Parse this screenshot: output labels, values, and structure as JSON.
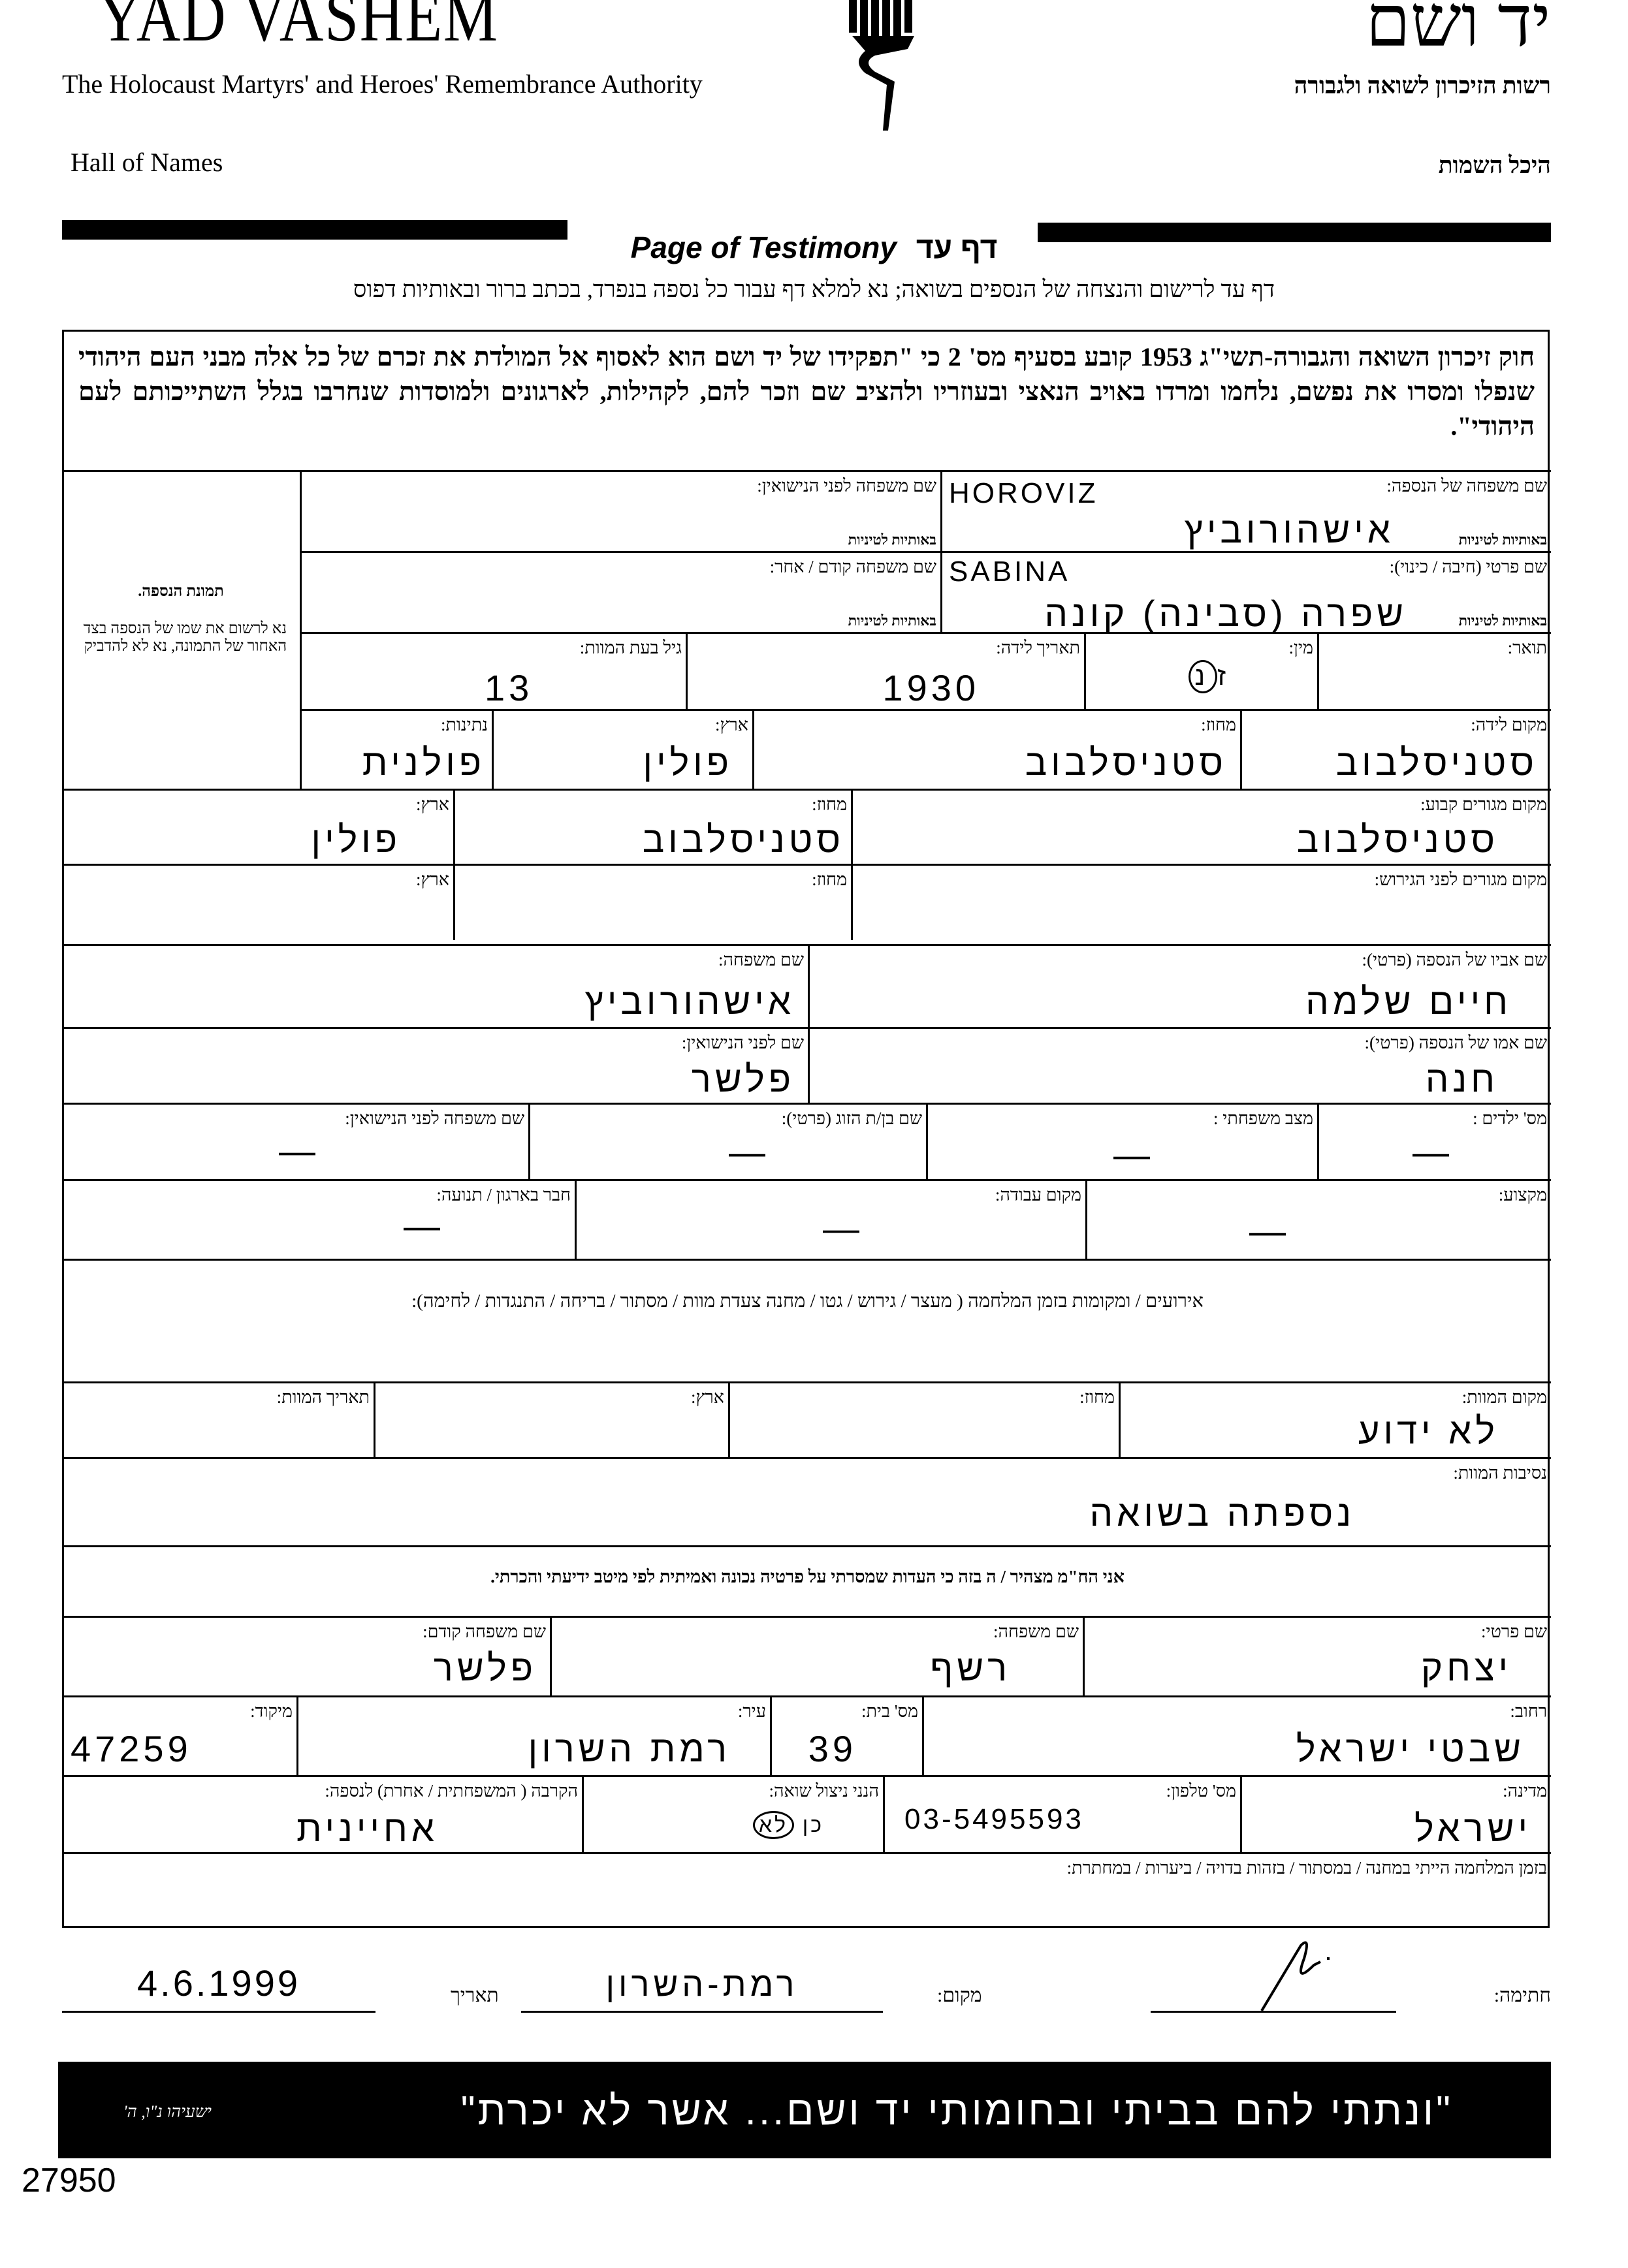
{
  "header": {
    "org_en": "YAD VASHEM",
    "org_he": "יד ושם",
    "subtitle_en": "The Holocaust Martyrs' and Heroes' Remembrance Authority",
    "subtitle_he": "רשות הזיכרון לשואה ולגבורה",
    "dept_en": "Hall of Names",
    "dept_he": "היכל השמות",
    "title_en": "Page of Testimony",
    "title_he": "דף עד",
    "instructions": "דף עד לרישום והנצחה של הנספים בשואה; נא למלא דף עבור כל נספה בנפרד, בכתב ברור ובאותיות דפוס"
  },
  "law_text": "חוק זיכרון השואה והגבורה-תשי\"ג 1953 קובע בסעיף מס' 2 כי \"תפקידו של יד ושם הוא לאסוף אל המולדת את זכרם של כל אלה מבני העם היהודי שנפלו ומסרו את נפשם, נלחמו ומרדו באויב הנאצי ובעוזריו ולהציב שם וזכר להם, לקהילות, לארגונים ולמוסדות שנחרבו בגלל השתייכותם לעם היהודי\".",
  "photo": {
    "title": "תמונת הנספה.",
    "note": "נא לרשום את שמו של הנספה בצד האחור של התמונה, נא לא להדביק"
  },
  "latin_letters_label": "באותיות לטיניות",
  "victim": {
    "surname": {
      "label": "שם משפחה של הנספה:",
      "latin": "HOROVIZ",
      "value": "אישהורוביץ"
    },
    "maiden_name": {
      "label": "שם משפחה לפני הנישואין:",
      "value": ""
    },
    "first_name": {
      "label": "שם פרטי (חיבה / כינוי):",
      "latin": "SABINA",
      "value": "שפרה (סבינה) קונה"
    },
    "previous_name": {
      "label": "שם משפחה קודם / אחר:",
      "value": ""
    },
    "title": {
      "label": "תואר:",
      "value": ""
    },
    "gender": {
      "label": "מין:",
      "option_male": "ז",
      "option_female": "נ",
      "selected": "נ"
    },
    "birth_date": {
      "label": "תאריך לידה:",
      "value": "1930"
    },
    "age_at_death": {
      "label": "גיל בעת המוות:",
      "value": "13"
    },
    "birth_place": {
      "label": "מקום לידה:",
      "value": "סטניסלבוב"
    },
    "birth_region": {
      "label": "מחוז:",
      "value": "סטניסלבוב"
    },
    "birth_country": {
      "label": "ארץ:",
      "value": "פולין"
    },
    "nationality": {
      "label": "נתינות:",
      "value": "פולנית"
    },
    "residence": {
      "label": "מקום מגורים קבוע:",
      "value": "סטניסלבוב"
    },
    "residence_region": {
      "label": "מחוז:",
      "value": "סטניסלבוב"
    },
    "residence_country": {
      "label": "ארץ:",
      "value": "פולין"
    },
    "prewar_residence": {
      "label": "מקום מגורים לפני הגירוש:",
      "value": ""
    },
    "prewar_region": {
      "label": "מחוז:",
      "value": ""
    },
    "prewar_country": {
      "label": "ארץ:",
      "value": ""
    },
    "father_name": {
      "label": "שם אביו של הנספה (פרטי):",
      "value": "חיים שלמה"
    },
    "father_surname": {
      "label": "שם משפחה:",
      "value": "אישהורוביץ"
    },
    "mother_name": {
      "label": "שם אמו של הנספה (פרטי):",
      "value": "חנה"
    },
    "mother_maiden": {
      "label": "שם לפני הנישואין:",
      "value": "פלשר"
    },
    "children_count": {
      "label": "מס' ילדים :",
      "value": "—"
    },
    "marital_status": {
      "label": "מצב משפחתי :",
      "value": "—"
    },
    "spouse_name": {
      "label": "שם בן/ת הזוג (פרטי):",
      "value": "—"
    },
    "spouse_maiden": {
      "label": "שם משפחה לפני הנישואין:",
      "value": "—"
    },
    "profession": {
      "label": "מקצוע:",
      "value": "—"
    },
    "workplace": {
      "label": "מקום עבודה:",
      "value": "—"
    },
    "organization": {
      "label": "חבר בארגון / תנועה:",
      "value": "—"
    },
    "wartime_events": {
      "label": "אירועים / ומקומות בזמן המלחמה ( מעצר / גירוש / גטו / מחנה  צעדת מוות / מסתור / בריחה / התנגדות / לחימה):",
      "value": ""
    },
    "death_place": {
      "label": "מקום המוות:",
      "value": "לא ידוע"
    },
    "death_region": {
      "label": "מחוז:",
      "value": ""
    },
    "death_country": {
      "label": "ארץ:",
      "value": ""
    },
    "death_date": {
      "label": "תאריך המוות:",
      "value": ""
    },
    "death_circumstances": {
      "label": "נסיבות המוות:",
      "value": "נספתה בשואה"
    }
  },
  "declaration": "אני הח\"מ מצהיר / ה בזה כי העדות שמסרתי על פרטיה נכונה ואמיתית לפי מיטב ידיעתי והכרתי.",
  "submitter": {
    "first_name": {
      "label": "שם פרטי:",
      "value": "יצחק"
    },
    "surname": {
      "label": "שם משפחה:",
      "value": "רשף"
    },
    "previous_surname": {
      "label": "שם משפחה קודם:",
      "value": "פלשר"
    },
    "street": {
      "label": "רחוב:",
      "value": "שבטי ישראל"
    },
    "house_no": {
      "label": "מס' בית:",
      "value": "39"
    },
    "city": {
      "label": "עיר:",
      "value": "רמת השרון"
    },
    "zip": {
      "label": "מיקוד:",
      "value": "47259"
    },
    "country": {
      "label": "מדינה:",
      "value": "ישראל"
    },
    "phone": {
      "label": "מס' טלפון:",
      "value": "03-5495593"
    },
    "survivor": {
      "label": "הנני ניצול שואה:",
      "option_yes": "כן",
      "option_no": "לא",
      "selected": "לא"
    },
    "relationship": {
      "label": "הקרבה ( המשפחתית / אחרת) לנספה:",
      "value": "אחיינית"
    },
    "wartime": {
      "label": "בזמן המלחמה הייתי במחנה / במסתור / בזהות בדויה / ביערות / במחתרת:",
      "value": ""
    }
  },
  "signature": {
    "signature_label": "חתימה:",
    "place_label": "מקום:",
    "place_value": "רמת-השרון",
    "date_label": "תאריך",
    "date_value": "4.6.1999"
  },
  "banner": {
    "quote": "\"ונתתי להם בביתי ובחומותי יד ושם... אשר לא יכרת\"",
    "source": "ישעיהו נ\"ו, ה'"
  },
  "archive_number": "27950"
}
